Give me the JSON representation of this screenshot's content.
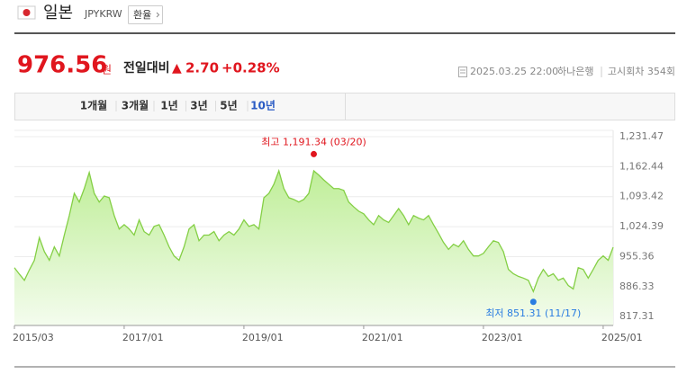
{
  "header": {
    "name": "일본",
    "code": "JPYKRW",
    "button": "환율"
  },
  "quote": {
    "price": "976.56",
    "unit": "원",
    "change_label": "전일대비",
    "change_arrow": "▲",
    "change": "2.70",
    "change_pct": "+0.28%"
  },
  "meta": {
    "date": "2025.03.25 22:00",
    "bank": "하나은행",
    "round": "고시회차 354회"
  },
  "tabs": {
    "items": [
      "1개월",
      "3개월",
      "1년",
      "3년",
      "5년",
      "10년"
    ],
    "active": 5
  },
  "chart_data": {
    "type": "line",
    "color": "#84cf45",
    "area": true,
    "grid": true,
    "x": [
      "2015/03",
      "2015/04",
      "2015/05",
      "2015/06",
      "2015/07",
      "2015/08",
      "2015/09",
      "2015/10",
      "2015/11",
      "2015/12",
      "2016/01",
      "2016/02",
      "2016/03",
      "2016/04",
      "2016/05",
      "2016/06",
      "2016/07",
      "2016/08",
      "2016/09",
      "2016/10",
      "2016/11",
      "2016/12",
      "2017/01",
      "2017/02",
      "2017/03",
      "2017/04",
      "2017/05",
      "2017/06",
      "2017/07",
      "2017/08",
      "2017/09",
      "2017/10",
      "2017/11",
      "2017/12",
      "2018/01",
      "2018/02",
      "2018/03",
      "2018/04",
      "2018/05",
      "2018/06",
      "2018/07",
      "2018/08",
      "2018/09",
      "2018/10",
      "2018/11",
      "2018/12",
      "2019/01",
      "2019/02",
      "2019/03",
      "2019/04",
      "2019/05",
      "2019/06",
      "2019/07",
      "2019/08",
      "2019/09",
      "2019/10",
      "2019/11",
      "2019/12",
      "2020/01",
      "2020/02",
      "2020/03",
      "2020/04",
      "2020/05",
      "2020/06",
      "2020/07",
      "2020/08",
      "2020/09",
      "2020/10",
      "2020/11",
      "2020/12",
      "2021/01",
      "2021/02",
      "2021/03",
      "2021/04",
      "2021/05",
      "2021/06",
      "2021/07",
      "2021/08",
      "2021/09",
      "2021/10",
      "2021/11",
      "2021/12",
      "2022/01",
      "2022/02",
      "2022/03",
      "2022/04",
      "2022/05",
      "2022/06",
      "2022/07",
      "2022/08",
      "2022/09",
      "2022/10",
      "2022/11",
      "2022/12",
      "2023/01",
      "2023/02",
      "2023/03",
      "2023/04",
      "2023/05",
      "2023/06",
      "2023/07",
      "2023/08",
      "2023/09",
      "2023/10",
      "2023/11",
      "2023/12",
      "2024/01",
      "2024/02",
      "2024/03",
      "2024/04",
      "2024/05",
      "2024/06",
      "2024/07",
      "2024/08",
      "2024/09",
      "2024/10",
      "2024/11",
      "2024/12",
      "2025/01",
      "2025/02",
      "2025/03"
    ],
    "values": [
      930,
      915,
      901,
      925,
      947,
      999,
      967,
      947,
      978,
      957,
      1005,
      1050,
      1101,
      1081,
      1112,
      1149,
      1101,
      1081,
      1095,
      1091,
      1050,
      1019,
      1029,
      1019,
      1005,
      1040,
      1013,
      1005,
      1025,
      1029,
      1005,
      978,
      957,
      947,
      978,
      1019,
      1029,
      992,
      1005,
      1005,
      1013,
      992,
      1005,
      1013,
      1005,
      1019,
      1040,
      1025,
      1029,
      1019,
      1091,
      1101,
      1122,
      1153,
      1112,
      1091,
      1087,
      1081,
      1087,
      1101,
      1153,
      1143,
      1132,
      1122,
      1112,
      1112,
      1108,
      1081,
      1070,
      1060,
      1054,
      1040,
      1029,
      1050,
      1040,
      1034,
      1050,
      1066,
      1050,
      1029,
      1050,
      1044,
      1040,
      1050,
      1029,
      1009,
      988,
      972,
      984,
      978,
      992,
      972,
      957,
      957,
      963,
      978,
      992,
      988,
      967,
      926,
      916,
      910,
      906,
      901,
      875,
      906,
      926,
      910,
      916,
      901,
      906,
      889,
      881,
      930,
      926,
      906,
      926,
      947,
      957,
      947,
      977
    ],
    "xlim": [
      "2015/03",
      "2025/03"
    ],
    "xticks": [
      "2015/03",
      "2017/01",
      "2019/01",
      "2021/01",
      "2023/01",
      "2025/01"
    ],
    "ylim": [
      797,
      1246
    ],
    "yticks": [
      {
        "value": 817.31,
        "label": "817.31"
      },
      {
        "value": 886.33,
        "label": "886.33"
      },
      {
        "value": 955.36,
        "label": "955.36"
      },
      {
        "value": 1024.39,
        "label": "1,024.39"
      },
      {
        "value": 1093.42,
        "label": "1,093.42"
      },
      {
        "value": 1162.44,
        "label": "1,162.44"
      },
      {
        "value": 1231.47,
        "label": "1,231.47"
      }
    ],
    "annotations": [
      {
        "label": "최고 1,191.34 (03/20)",
        "x": "2020/03",
        "value": 1191.34,
        "color": "#e0161e",
        "position": "above"
      },
      {
        "label": "최저 851.31 (11/17)",
        "x": "2023/11",
        "value": 851.31,
        "color": "#2a7de1",
        "position": "below"
      }
    ]
  }
}
